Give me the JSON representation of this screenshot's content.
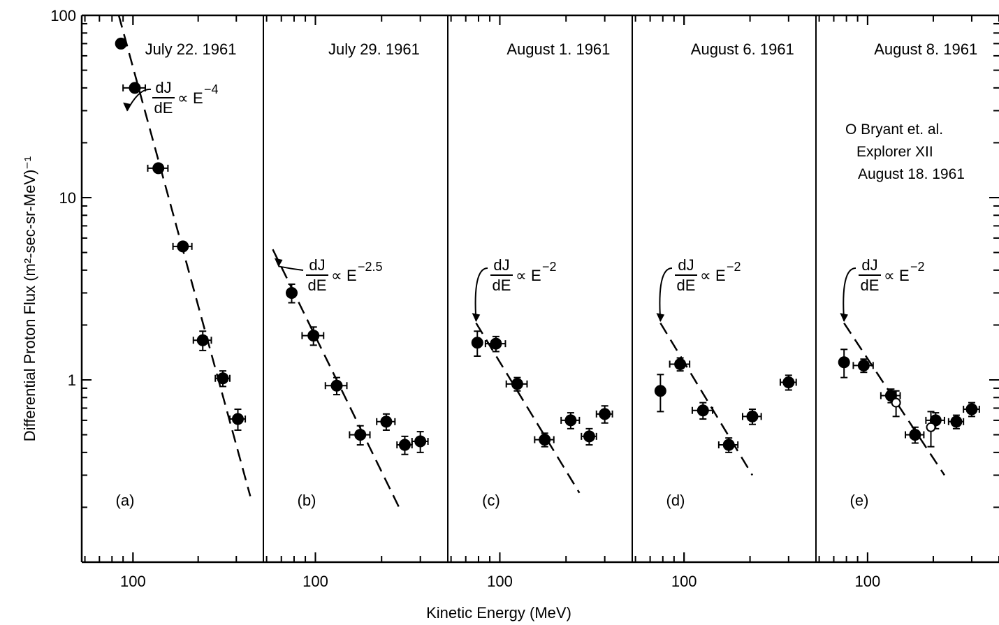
{
  "chart_data": {
    "type": "scatter",
    "xlabel": "Kinetic Energy (MeV)",
    "ylabel": "Differential Proton Flux (m²-sec-sr-MeV)⁻¹",
    "y_log_scale": true,
    "x_log_scale": true,
    "ylim": [
      0.1,
      100
    ],
    "y_ticks": [
      "100",
      "10",
      "1"
    ],
    "x_tick": "100",
    "panels": [
      {
        "label": "(a)",
        "title": "July 22. 1961",
        "xlim": [
          58,
          400
        ],
        "fit_label": {
          "lhs_num": "dJ",
          "lhs_den": "dE",
          "rhs": "E",
          "exponent": "−4"
        },
        "fit_line": [
          [
            86,
            100
          ],
          [
            348,
            0.23
          ]
        ],
        "points": [
          {
            "x": 88,
            "y": 70,
            "xerr": 0,
            "yerr": 0
          },
          {
            "x": 102,
            "y": 40,
            "xerr": 12,
            "yerr": 0
          },
          {
            "x": 131,
            "y": 14.5,
            "xerr": 14,
            "yerr": 0
          },
          {
            "x": 170,
            "y": 5.4,
            "xerr": 17,
            "yerr": 0
          },
          {
            "x": 210,
            "y": 1.65,
            "xerr": 20,
            "yerr": 0.2
          },
          {
            "x": 260,
            "y": 1.02,
            "xerr": 20,
            "yerr": 0.1
          },
          {
            "x": 305,
            "y": 0.61,
            "xerr": 25,
            "yerr": 0.08
          }
        ],
        "open_points": []
      },
      {
        "label": "(b)",
        "title": "July 29. 1961",
        "xlim": [
          58,
          400
        ],
        "fit_label": {
          "lhs_num": "dJ",
          "lhs_den": "dE",
          "rhs": "E",
          "exponent": "−2.5"
        },
        "fit_line": [
          [
            64,
            5.2
          ],
          [
            240,
            0.2
          ]
        ],
        "points": [
          {
            "x": 78,
            "y": 3.0,
            "xerr": 0,
            "yerr": 0.35
          },
          {
            "x": 98,
            "y": 1.75,
            "xerr": 11,
            "yerr": 0.2
          },
          {
            "x": 125,
            "y": 0.93,
            "xerr": 14,
            "yerr": 0.1
          },
          {
            "x": 160,
            "y": 0.5,
            "xerr": 17,
            "yerr": 0.06
          },
          {
            "x": 210,
            "y": 0.59,
            "xerr": 20,
            "yerr": 0.06
          },
          {
            "x": 255,
            "y": 0.44,
            "xerr": 20,
            "yerr": 0.05
          },
          {
            "x": 300,
            "y": 0.46,
            "xerr": 25,
            "yerr": 0.06
          }
        ],
        "open_points": []
      },
      {
        "label": "(c)",
        "title": "August 1. 1961",
        "xlim": [
          58,
          400
        ],
        "fit_label": {
          "lhs_num": "dJ",
          "lhs_den": "dE",
          "rhs": "E",
          "exponent": "−2"
        },
        "fit_line": [
          [
            78,
            2.05
          ],
          [
            230,
            0.24
          ]
        ],
        "points": [
          {
            "x": 79,
            "y": 1.6,
            "xerr": 0,
            "yerr": 0.25
          },
          {
            "x": 96,
            "y": 1.58,
            "xerr": 10,
            "yerr": 0.15
          },
          {
            "x": 120,
            "y": 0.95,
            "xerr": 13,
            "yerr": 0.08
          },
          {
            "x": 160,
            "y": 0.47,
            "xerr": 16,
            "yerr": 0.04
          },
          {
            "x": 210,
            "y": 0.6,
            "xerr": 20,
            "yerr": 0.06
          },
          {
            "x": 255,
            "y": 0.49,
            "xerr": 20,
            "yerr": 0.05
          },
          {
            "x": 300,
            "y": 0.65,
            "xerr": 25,
            "yerr": 0.07
          }
        ],
        "open_points": []
      },
      {
        "label": "(d)",
        "title": "August 6. 1961",
        "xlim": [
          58,
          400
        ],
        "fit_label": {
          "lhs_num": "dJ",
          "lhs_den": "dE",
          "rhs": "E",
          "exponent": "−2"
        },
        "fit_line": [
          [
            78,
            2.05
          ],
          [
            205,
            0.3
          ]
        ],
        "points": [
          {
            "x": 78,
            "y": 0.87,
            "xerr": 0,
            "yerr": 0.2
          },
          {
            "x": 96,
            "y": 1.22,
            "xerr": 10,
            "yerr": 0.1
          },
          {
            "x": 122,
            "y": 0.68,
            "xerr": 13,
            "yerr": 0.07
          },
          {
            "x": 160,
            "y": 0.44,
            "xerr": 16,
            "yerr": 0.04
          },
          {
            "x": 205,
            "y": 0.63,
            "xerr": 20,
            "yerr": 0.06
          },
          {
            "x": 300,
            "y": 0.97,
            "xerr": 25,
            "yerr": 0.09
          }
        ],
        "open_points": []
      },
      {
        "label": "(e)",
        "title": "August 8. 1961",
        "xlim": [
          58,
          400
        ],
        "fit_label": {
          "lhs_num": "dJ",
          "lhs_den": "dE",
          "rhs": "E",
          "exponent": "−2"
        },
        "fit_line": [
          [
            78,
            2.05
          ],
          [
            225,
            0.3
          ]
        ],
        "points": [
          {
            "x": 78,
            "y": 1.25,
            "xerr": 0,
            "yerr": 0.22
          },
          {
            "x": 96,
            "y": 1.2,
            "xerr": 10,
            "yerr": 0.1
          },
          {
            "x": 128,
            "y": 0.82,
            "xerr": 13,
            "yerr": 0.07
          },
          {
            "x": 165,
            "y": 0.5,
            "xerr": 16,
            "yerr": 0.05
          },
          {
            "x": 205,
            "y": 0.6,
            "xerr": 20,
            "yerr": 0.06
          },
          {
            "x": 255,
            "y": 0.59,
            "xerr": 20,
            "yerr": 0.05
          },
          {
            "x": 300,
            "y": 0.69,
            "xerr": 25,
            "yerr": 0.06
          }
        ],
        "open_points": [
          {
            "x": 135,
            "y": 0.75,
            "xerr": 0,
            "yerr": 0.12
          },
          {
            "x": 195,
            "y": 0.55,
            "xerr": 0,
            "yerr": 0.12
          }
        ],
        "legend": [
          "O Bryant et. al.",
          "Explorer XII",
          "August 18. 1961"
        ],
        "legend_position": "upper-right"
      }
    ]
  }
}
